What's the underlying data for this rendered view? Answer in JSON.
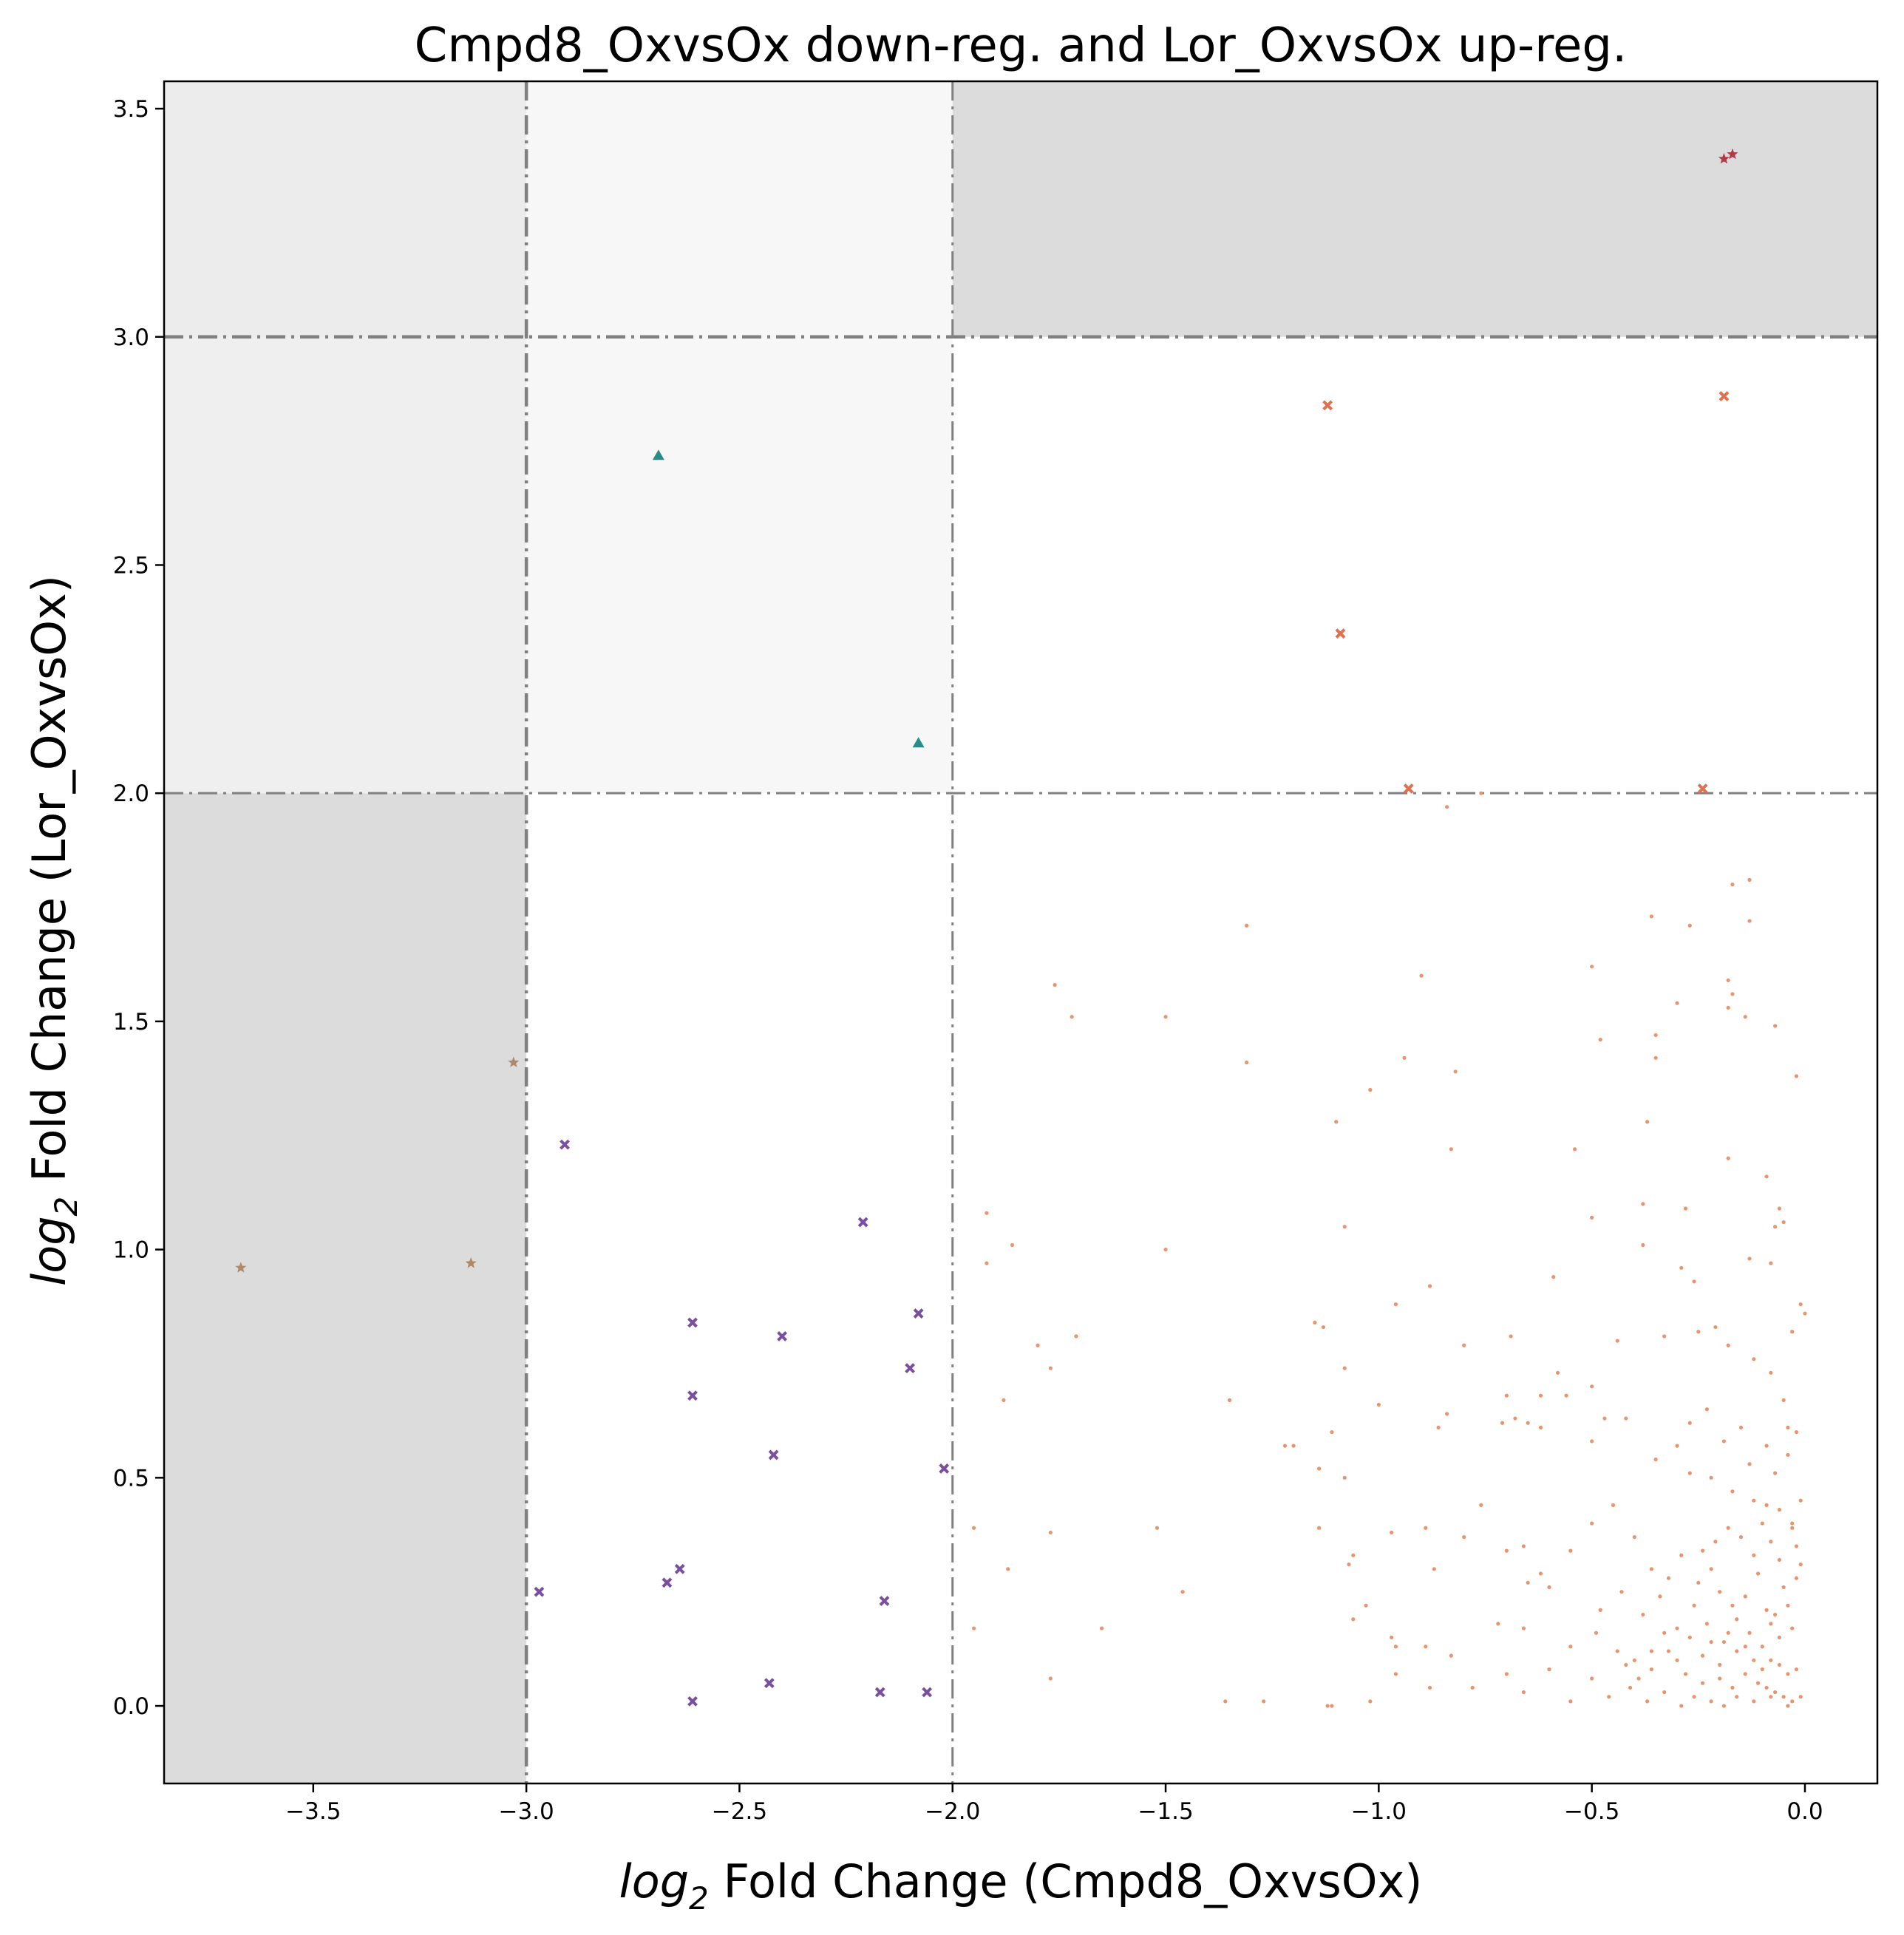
{
  "chart_data": {
    "type": "scatter",
    "title": "Cmpd8_OxvsOx down-reg. and Lor_OxvsOx up-reg.",
    "xlabel": {
      "prefix": "log",
      "sub": "2",
      "rest": " Fold Change (Cmpd8_OxvsOx)"
    },
    "ylabel": {
      "prefix": "log",
      "sub": "2",
      "rest": " Fold Change (Lor_OxvsOx)"
    },
    "xlim": [
      -3.85,
      0.17
    ],
    "ylim": [
      -0.17,
      3.56
    ],
    "xticks": [
      -3.5,
      -3.0,
      -2.5,
      -2.0,
      -1.5,
      -1.0,
      -0.5,
      0.0
    ],
    "xtick_labels": [
      "−3.5",
      "−3.0",
      "−2.5",
      "−2.0",
      "−1.5",
      "−1.0",
      "−0.5",
      "0.0"
    ],
    "yticks": [
      0.0,
      0.5,
      1.0,
      1.5,
      2.0,
      2.5,
      3.0,
      3.5
    ],
    "ytick_labels": [
      "0.0",
      "0.5",
      "1.0",
      "1.5",
      "2.0",
      "2.5",
      "3.0",
      "3.5"
    ],
    "grid": false,
    "shaded_regions": [
      {
        "x": [
          -3.85,
          -3.0
        ],
        "y": [
          -0.17,
          2.0
        ],
        "color": "#dcdcdc"
      },
      {
        "x": [
          -3.85,
          -3.0
        ],
        "y": [
          2.0,
          3.56
        ],
        "color": "#efefef"
      },
      {
        "x": [
          -3.0,
          -2.0
        ],
        "y": [
          3.0,
          3.56
        ],
        "color": "#f7f7f7"
      },
      {
        "x": [
          -3.85,
          -3.0
        ],
        "y": [
          3.0,
          3.56
        ],
        "color": "#ececec"
      },
      {
        "x": [
          -2.0,
          0.17
        ],
        "y": [
          3.0,
          3.56
        ],
        "color": "#dcdcdc"
      },
      {
        "x": [
          -3.0,
          -2.0
        ],
        "y": [
          2.0,
          3.0
        ],
        "color": "#f7f7f7"
      }
    ],
    "threshold_lines": [
      {
        "orientation": "vertical",
        "value": -3.0,
        "style": "dashdot",
        "weight": "bold"
      },
      {
        "orientation": "vertical",
        "value": -2.0,
        "style": "dashdot",
        "weight": "normal"
      },
      {
        "orientation": "horizontal",
        "value": 3.0,
        "style": "dashdot",
        "weight": "bold"
      },
      {
        "orientation": "horizontal",
        "value": 2.0,
        "style": "dashdot",
        "weight": "normal"
      }
    ],
    "line_color": "#808080",
    "series": [
      {
        "marker": "star",
        "color": "#b08968",
        "points": [
          [
            -3.67,
            0.96
          ],
          [
            -3.13,
            0.97
          ],
          [
            -3.03,
            1.41
          ]
        ]
      },
      {
        "marker": "triangle",
        "color": "#2a8c86",
        "points": [
          [
            -2.69,
            2.74
          ],
          [
            -2.08,
            2.11
          ]
        ]
      },
      {
        "marker": "x",
        "color": "#7b4fa0",
        "points": [
          [
            -2.91,
            1.23
          ],
          [
            -2.97,
            0.25
          ],
          [
            -2.67,
            0.27
          ],
          [
            -2.64,
            0.3
          ],
          [
            -2.61,
            0.84
          ],
          [
            -2.61,
            0.68
          ],
          [
            -2.61,
            0.01
          ],
          [
            -2.43,
            0.05
          ],
          [
            -2.42,
            0.55
          ],
          [
            -2.4,
            0.81
          ],
          [
            -2.21,
            1.06
          ],
          [
            -2.17,
            0.03
          ],
          [
            -2.16,
            0.23
          ],
          [
            -2.1,
            0.74
          ],
          [
            -2.08,
            0.86
          ],
          [
            -2.06,
            0.03
          ],
          [
            -2.02,
            0.52
          ]
        ]
      },
      {
        "marker": "x",
        "color": "#e07050",
        "points": [
          [
            -1.12,
            2.85
          ],
          [
            -1.09,
            2.35
          ],
          [
            -0.93,
            2.01
          ],
          [
            -0.19,
            2.87
          ],
          [
            -0.24,
            2.01
          ]
        ]
      },
      {
        "marker": "star",
        "color": "#b03a48",
        "points": [
          [
            -0.19,
            3.39
          ],
          [
            -0.17,
            3.4
          ]
        ]
      },
      {
        "marker": "dot",
        "color": "#e8956f",
        "points": [
          [
            -1.31,
            1.71
          ],
          [
            -1.76,
            1.58
          ],
          [
            -1.72,
            1.51
          ],
          [
            -1.5,
            1.51
          ],
          [
            -1.31,
            1.41
          ],
          [
            -0.9,
            1.6
          ],
          [
            -0.82,
            1.39
          ],
          [
            -0.94,
            1.42
          ],
          [
            -1.02,
            1.35
          ],
          [
            -1.1,
            1.28
          ],
          [
            -0.83,
            1.22
          ],
          [
            -1.92,
            1.08
          ],
          [
            -1.86,
            1.01
          ],
          [
            -1.92,
            0.97
          ],
          [
            -1.5,
            1.0
          ],
          [
            -1.08,
            1.05
          ],
          [
            -0.76,
            2.0
          ],
          [
            -0.84,
            1.97
          ],
          [
            -0.13,
            1.81
          ],
          [
            -0.17,
            1.8
          ],
          [
            -0.36,
            1.73
          ],
          [
            -0.27,
            1.71
          ],
          [
            -0.13,
            1.72
          ],
          [
            -0.18,
            1.59
          ],
          [
            -0.17,
            1.56
          ],
          [
            -0.18,
            1.53
          ],
          [
            -0.14,
            1.51
          ],
          [
            -0.3,
            1.54
          ],
          [
            -0.5,
            1.62
          ],
          [
            -0.48,
            1.46
          ],
          [
            -0.35,
            1.47
          ],
          [
            -0.35,
            1.42
          ],
          [
            -0.07,
            1.49
          ],
          [
            -0.02,
            1.38
          ],
          [
            -0.37,
            1.28
          ],
          [
            -0.54,
            1.22
          ],
          [
            -0.18,
            1.2
          ],
          [
            -0.09,
            1.16
          ],
          [
            -0.5,
            1.07
          ],
          [
            -0.38,
            1.1
          ],
          [
            -0.28,
            1.09
          ],
          [
            -0.07,
            1.05
          ],
          [
            -0.05,
            1.06
          ],
          [
            -0.06,
            1.09
          ],
          [
            -0.59,
            0.94
          ],
          [
            -0.38,
            1.01
          ],
          [
            -0.29,
            0.96
          ],
          [
            -0.26,
            0.93
          ],
          [
            -0.13,
            0.98
          ],
          [
            -0.08,
            0.97
          ],
          [
            -0.01,
            0.88
          ],
          [
            0.0,
            0.86
          ],
          [
            -0.03,
            0.82
          ],
          [
            -0.88,
            0.92
          ],
          [
            -0.96,
            0.88
          ],
          [
            -1.15,
            0.84
          ],
          [
            -1.13,
            0.83
          ],
          [
            -1.8,
            0.79
          ],
          [
            -1.71,
            0.81
          ],
          [
            -1.88,
            0.67
          ],
          [
            -1.77,
            0.74
          ],
          [
            -1.08,
            0.74
          ],
          [
            -1.0,
            0.66
          ],
          [
            -0.8,
            0.79
          ],
          [
            -0.69,
            0.81
          ],
          [
            -0.7,
            0.68
          ],
          [
            -0.68,
            0.63
          ],
          [
            -0.62,
            0.68
          ],
          [
            -0.58,
            0.73
          ],
          [
            -0.56,
            0.68
          ],
          [
            -0.5,
            0.7
          ],
          [
            -0.44,
            0.8
          ],
          [
            -0.33,
            0.81
          ],
          [
            -0.25,
            0.82
          ],
          [
            -0.21,
            0.83
          ],
          [
            -0.18,
            0.79
          ],
          [
            -0.12,
            0.76
          ],
          [
            -0.08,
            0.73
          ],
          [
            -0.05,
            0.67
          ],
          [
            -0.04,
            0.61
          ],
          [
            -1.35,
            0.67
          ],
          [
            -1.22,
            0.57
          ],
          [
            -1.2,
            0.57
          ],
          [
            -1.14,
            0.52
          ],
          [
            -1.11,
            0.6
          ],
          [
            -1.08,
            0.5
          ],
          [
            -0.86,
            0.61
          ],
          [
            -0.84,
            0.64
          ],
          [
            -0.71,
            0.62
          ],
          [
            -0.65,
            0.62
          ],
          [
            -0.62,
            0.61
          ],
          [
            -0.5,
            0.58
          ],
          [
            -0.47,
            0.63
          ],
          [
            -0.42,
            0.63
          ],
          [
            -0.35,
            0.54
          ],
          [
            -0.3,
            0.57
          ],
          [
            -0.27,
            0.51
          ],
          [
            -0.22,
            0.5
          ],
          [
            -0.17,
            0.47
          ],
          [
            -0.12,
            0.45
          ],
          [
            -0.09,
            0.44
          ],
          [
            -0.06,
            0.43
          ],
          [
            -0.03,
            0.39
          ],
          [
            -1.95,
            0.39
          ],
          [
            -1.77,
            0.38
          ],
          [
            -1.52,
            0.39
          ],
          [
            -1.14,
            0.39
          ],
          [
            -0.97,
            0.38
          ],
          [
            -0.89,
            0.39
          ],
          [
            -0.8,
            0.37
          ],
          [
            -0.76,
            0.44
          ],
          [
            -0.7,
            0.34
          ],
          [
            -0.66,
            0.35
          ],
          [
            -0.62,
            0.29
          ],
          [
            -0.55,
            0.34
          ],
          [
            -0.5,
            0.4
          ],
          [
            -0.45,
            0.44
          ],
          [
            -0.4,
            0.37
          ],
          [
            -0.36,
            0.3
          ],
          [
            -0.32,
            0.28
          ],
          [
            -0.29,
            0.33
          ],
          [
            -0.25,
            0.27
          ],
          [
            -0.22,
            0.3
          ],
          [
            -0.2,
            0.25
          ],
          [
            -0.17,
            0.22
          ],
          [
            -0.14,
            0.24
          ],
          [
            -0.11,
            0.29
          ],
          [
            -0.09,
            0.21
          ],
          [
            -0.07,
            0.2
          ],
          [
            -0.05,
            0.26
          ],
          [
            -0.03,
            0.17
          ],
          [
            -0.01,
            0.31
          ],
          [
            -1.87,
            0.3
          ],
          [
            -1.46,
            0.25
          ],
          [
            -1.07,
            0.31
          ],
          [
            -1.06,
            0.33
          ],
          [
            -0.87,
            0.3
          ],
          [
            -0.65,
            0.27
          ],
          [
            -0.6,
            0.26
          ],
          [
            -0.48,
            0.21
          ],
          [
            -0.43,
            0.25
          ],
          [
            -0.38,
            0.2
          ],
          [
            -0.34,
            0.24
          ],
          [
            -0.3,
            0.17
          ],
          [
            -0.26,
            0.22
          ],
          [
            -0.23,
            0.18
          ],
          [
            -0.19,
            0.14
          ],
          [
            -0.16,
            0.12
          ],
          [
            -0.13,
            0.16
          ],
          [
            -0.1,
            0.13
          ],
          [
            -0.08,
            0.1
          ],
          [
            -0.06,
            0.09
          ],
          [
            -0.04,
            0.07
          ],
          [
            -0.02,
            0.08
          ],
          [
            -1.95,
            0.17
          ],
          [
            -1.65,
            0.17
          ],
          [
            -1.06,
            0.19
          ],
          [
            -1.03,
            0.22
          ],
          [
            -0.97,
            0.15
          ],
          [
            -0.96,
            0.13
          ],
          [
            -0.89,
            0.13
          ],
          [
            -0.83,
            0.11
          ],
          [
            -0.72,
            0.18
          ],
          [
            -0.66,
            0.17
          ],
          [
            -0.55,
            0.13
          ],
          [
            -0.49,
            0.16
          ],
          [
            -0.44,
            0.12
          ],
          [
            -0.4,
            0.1
          ],
          [
            -0.36,
            0.08
          ],
          [
            -0.32,
            0.12
          ],
          [
            -0.28,
            0.07
          ],
          [
            -0.24,
            0.05
          ],
          [
            -0.2,
            0.06
          ],
          [
            -0.17,
            0.04
          ],
          [
            -0.14,
            0.07
          ],
          [
            -0.11,
            0.05
          ],
          [
            -0.09,
            0.04
          ],
          [
            -0.07,
            0.03
          ],
          [
            -0.05,
            0.02
          ],
          [
            -0.03,
            0.01
          ],
          [
            -1.77,
            0.06
          ],
          [
            -1.36,
            0.01
          ],
          [
            -1.27,
            0.01
          ],
          [
            -1.12,
            0.0
          ],
          [
            -1.11,
            0.0
          ],
          [
            -1.02,
            0.01
          ],
          [
            -0.96,
            0.07
          ],
          [
            -0.88,
            0.04
          ],
          [
            -0.78,
            0.04
          ],
          [
            -0.7,
            0.07
          ],
          [
            -0.66,
            0.03
          ],
          [
            -0.6,
            0.08
          ],
          [
            -0.55,
            0.01
          ],
          [
            -0.5,
            0.06
          ],
          [
            -0.46,
            0.02
          ],
          [
            -0.41,
            0.04
          ],
          [
            -0.37,
            0.01
          ],
          [
            -0.33,
            0.03
          ],
          [
            -0.29,
            0.0
          ],
          [
            -0.26,
            0.02
          ],
          [
            -0.22,
            0.01
          ],
          [
            -0.19,
            0.0
          ],
          [
            -0.16,
            0.02
          ],
          [
            -0.12,
            0.01
          ],
          [
            -0.08,
            0.02
          ],
          [
            -0.04,
            0.0
          ],
          [
            -0.01,
            0.02
          ],
          [
            -0.03,
            0.4
          ],
          [
            -0.02,
            0.35
          ],
          [
            -0.01,
            0.45
          ],
          [
            -0.06,
            0.32
          ],
          [
            -0.08,
            0.36
          ],
          [
            -0.1,
            0.4
          ],
          [
            -0.12,
            0.33
          ],
          [
            -0.15,
            0.37
          ],
          [
            -0.18,
            0.39
          ],
          [
            -0.21,
            0.36
          ],
          [
            -0.24,
            0.34
          ],
          [
            -0.02,
            0.6
          ],
          [
            -0.04,
            0.55
          ],
          [
            -0.07,
            0.51
          ],
          [
            -0.09,
            0.57
          ],
          [
            -0.13,
            0.53
          ],
          [
            -0.15,
            0.61
          ],
          [
            -0.19,
            0.58
          ],
          [
            -0.23,
            0.65
          ],
          [
            -0.27,
            0.62
          ],
          [
            -0.02,
            0.28
          ],
          [
            -0.04,
            0.22
          ],
          [
            -0.06,
            0.15
          ],
          [
            -0.08,
            0.18
          ],
          [
            -0.1,
            0.08
          ],
          [
            -0.12,
            0.1
          ],
          [
            -0.14,
            0.13
          ],
          [
            -0.16,
            0.19
          ],
          [
            -0.18,
            0.16
          ],
          [
            -0.2,
            0.09
          ],
          [
            -0.22,
            0.14
          ],
          [
            -0.24,
            0.11
          ],
          [
            -0.27,
            0.15
          ],
          [
            -0.3,
            0.1
          ],
          [
            -0.33,
            0.16
          ],
          [
            -0.36,
            0.12
          ],
          [
            -0.39,
            0.06
          ],
          [
            -0.42,
            0.09
          ]
        ]
      }
    ]
  }
}
